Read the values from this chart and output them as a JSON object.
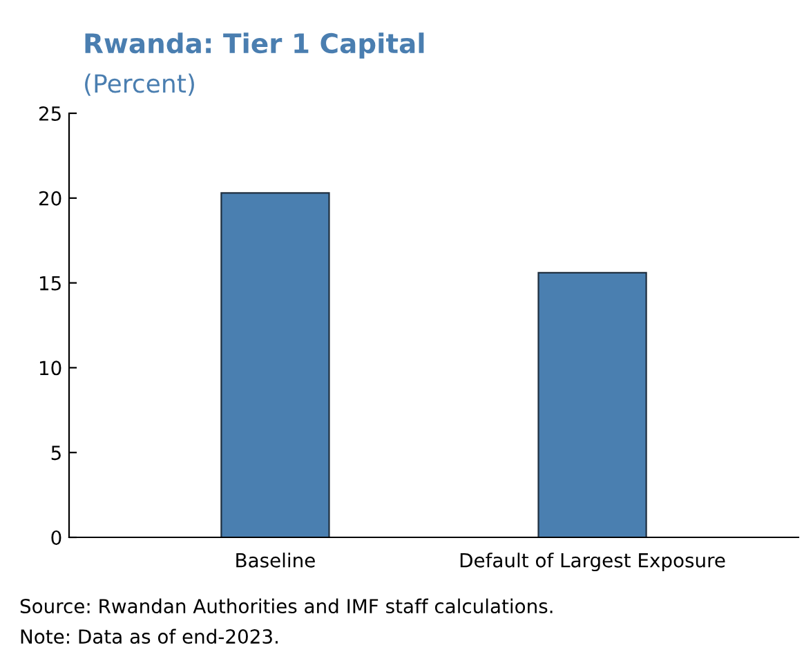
{
  "chart_data": {
    "type": "bar",
    "title": "Rwanda: Tier 1 Capital",
    "subtitle": "(Percent)",
    "categories": [
      "Baseline",
      "Default of Largest Exposure"
    ],
    "values": [
      20.3,
      15.6
    ],
    "color": "#4a7fb0",
    "ylim": [
      0,
      25
    ],
    "yticks": [
      0,
      5,
      10,
      15,
      20,
      25
    ],
    "grid": false,
    "annotations": [
      "Source: Rwandan Authorities and IMF staff calculations.",
      "Note: Data as of end-2023."
    ]
  }
}
